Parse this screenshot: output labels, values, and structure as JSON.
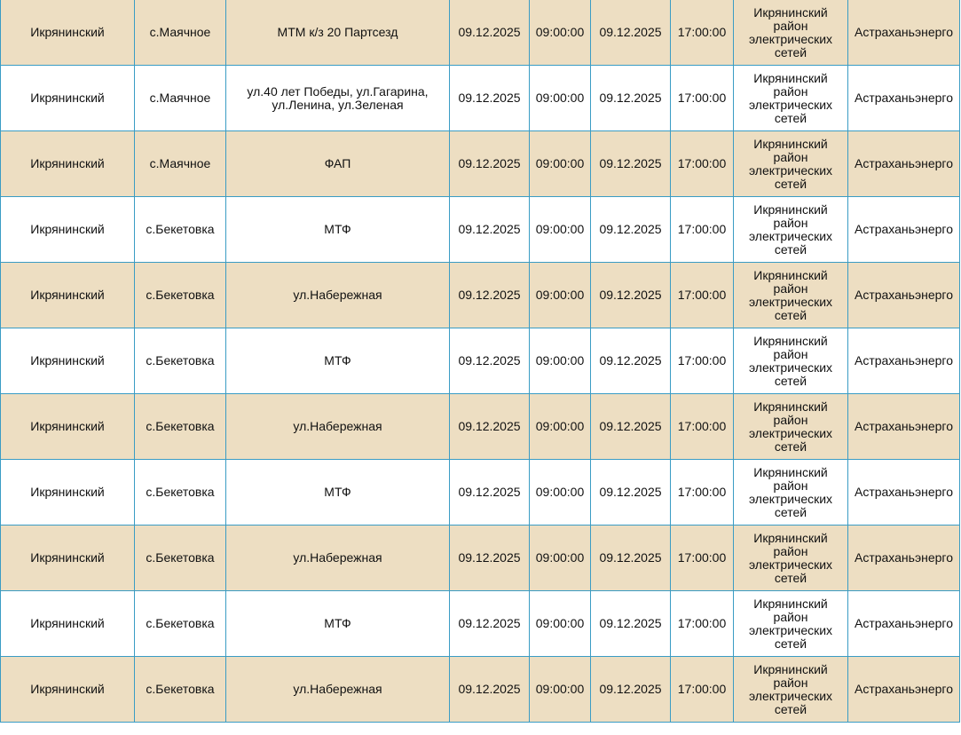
{
  "table": {
    "rows": [
      [
        "Икрянинский",
        "с.Маячное",
        "МТМ к/з 20 Партсезд",
        "09.12.2025",
        "09:00:00",
        "09.12.2025",
        "17:00:00",
        "Икрянинский район электрических сетей",
        "Астраханьэнерго"
      ],
      [
        "Икрянинский",
        "с.Маячное",
        "ул.40 лет Победы, ул.Гагарина, ул.Ленина, ул.Зеленая",
        "09.12.2025",
        "09:00:00",
        "09.12.2025",
        "17:00:00",
        "Икрянинский район электрических сетей",
        "Астраханьэнерго"
      ],
      [
        "Икрянинский",
        "с.Маячное",
        "ФАП",
        "09.12.2025",
        "09:00:00",
        "09.12.2025",
        "17:00:00",
        "Икрянинский район электрических сетей",
        "Астраханьэнерго"
      ],
      [
        "Икрянинский",
        "с.Бекетовка",
        "МТФ",
        "09.12.2025",
        "09:00:00",
        "09.12.2025",
        "17:00:00",
        "Икрянинский район электрических сетей",
        "Астраханьэнерго"
      ],
      [
        "Икрянинский",
        "с.Бекетовка",
        "ул.Набережная",
        "09.12.2025",
        "09:00:00",
        "09.12.2025",
        "17:00:00",
        "Икрянинский район электрических сетей",
        "Астраханьэнерго"
      ],
      [
        "Икрянинский",
        "с.Бекетовка",
        "МТФ",
        "09.12.2025",
        "09:00:00",
        "09.12.2025",
        "17:00:00",
        "Икрянинский район электрических сетей",
        "Астраханьэнерго"
      ],
      [
        "Икрянинский",
        "с.Бекетовка",
        "ул.Набережная",
        "09.12.2025",
        "09:00:00",
        "09.12.2025",
        "17:00:00",
        "Икрянинский район электрических сетей",
        "Астраханьэнерго"
      ],
      [
        "Икрянинский",
        "с.Бекетовка",
        "МТФ",
        "09.12.2025",
        "09:00:00",
        "09.12.2025",
        "17:00:00",
        "Икрянинский район электрических сетей",
        "Астраханьэнерго"
      ],
      [
        "Икрянинский",
        "с.Бекетовка",
        "ул.Набережная",
        "09.12.2025",
        "09:00:00",
        "09.12.2025",
        "17:00:00",
        "Икрянинский район электрических сетей",
        "Астраханьэнерго"
      ],
      [
        "Икрянинский",
        "с.Бекетовка",
        "МТФ",
        "09.12.2025",
        "09:00:00",
        "09.12.2025",
        "17:00:00",
        "Икрянинский район электрических сетей",
        "Астраханьэнерго"
      ],
      [
        "Икрянинский",
        "с.Бекетовка",
        "ул.Набережная",
        "09.12.2025",
        "09:00:00",
        "09.12.2025",
        "17:00:00",
        "Икрянинский район электрических сетей",
        "Астраханьэнерго"
      ]
    ]
  }
}
